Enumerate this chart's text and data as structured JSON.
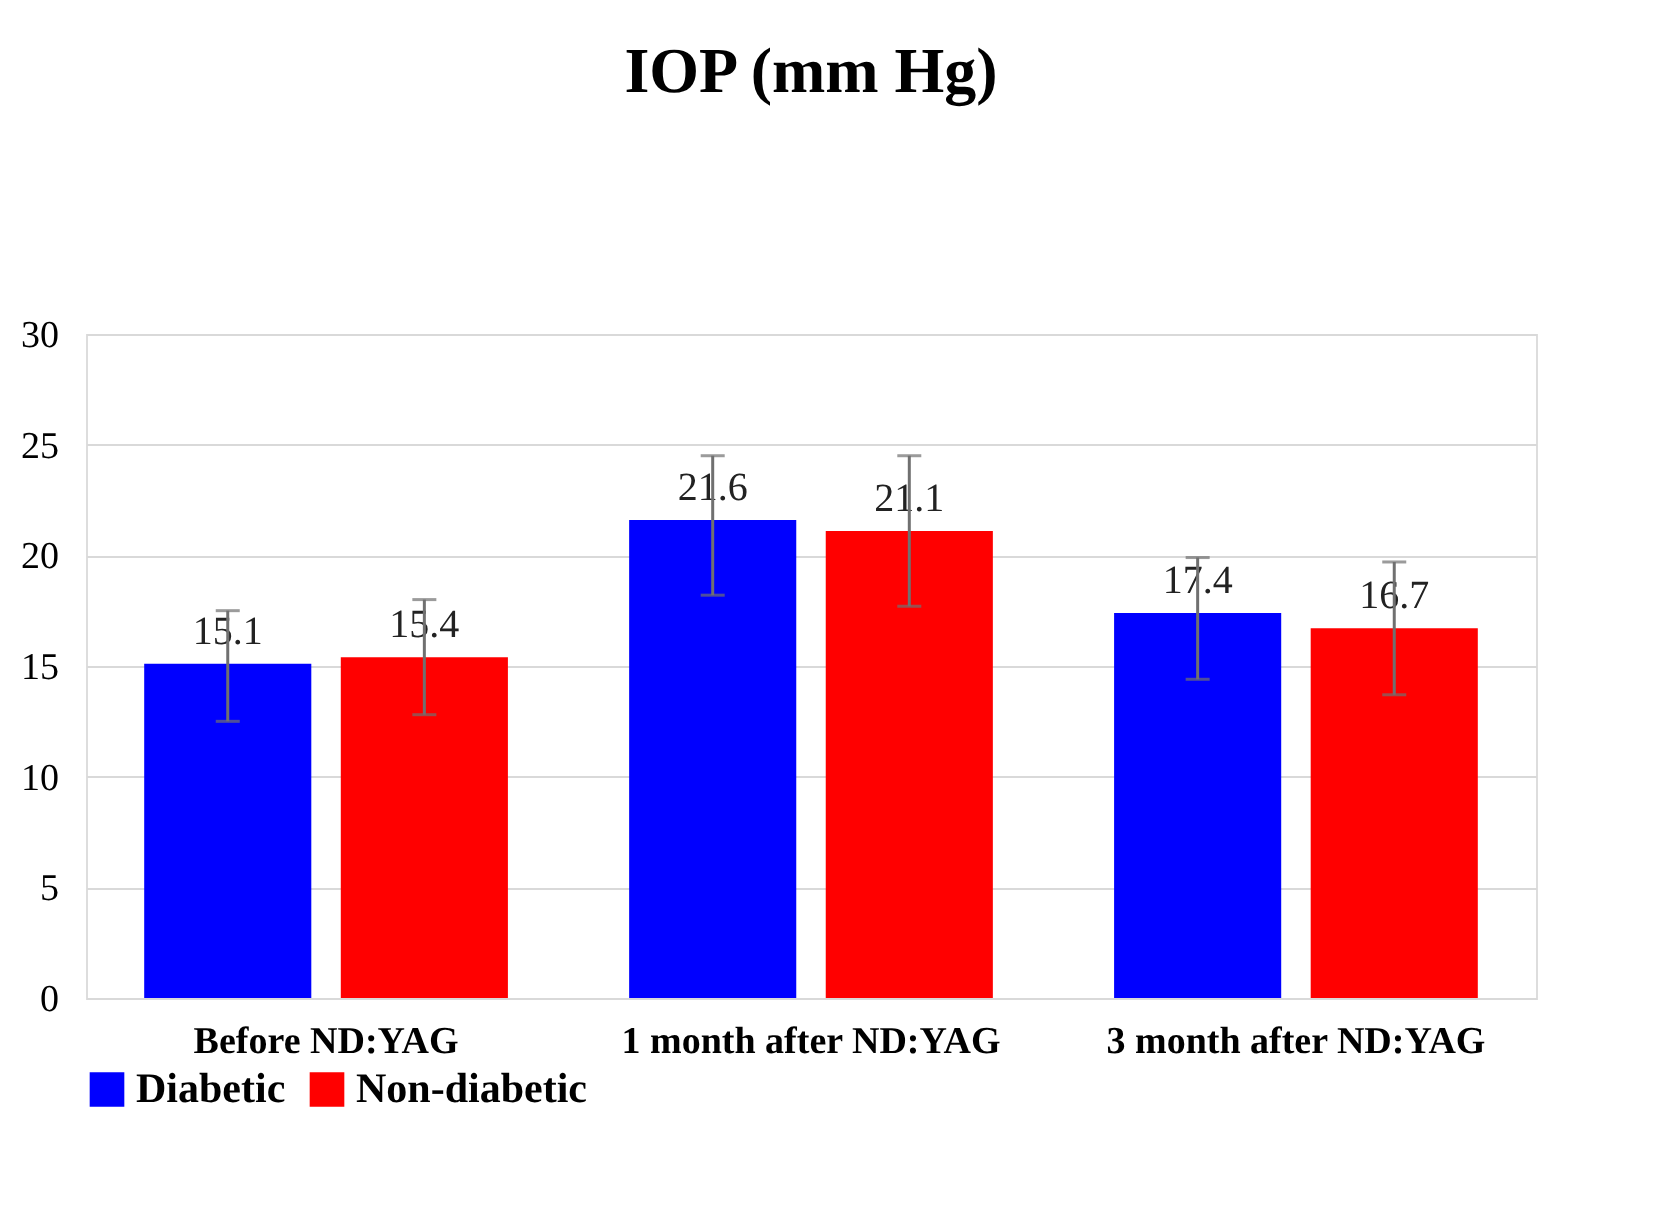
{
  "chart_data": {
    "type": "bar",
    "title": "IOP (mm Hg)",
    "categories": [
      "Before ND:YAG",
      "1 month after ND:YAG",
      "3 month after ND:YAG"
    ],
    "series": [
      {
        "name": "Diabetic",
        "color": "#0000ff",
        "values": [
          15.1,
          21.6,
          17.4
        ],
        "errors": [
          [
            12.5,
            17.5
          ],
          [
            18.2,
            24.5
          ],
          [
            14.4,
            19.9
          ]
        ]
      },
      {
        "name": "Non-diabetic",
        "color": "#ff0000",
        "values": [
          15.4,
          21.1,
          16.7
        ],
        "errors": [
          [
            12.8,
            18.0
          ],
          [
            17.7,
            24.5
          ],
          [
            13.7,
            19.7
          ]
        ]
      }
    ],
    "ylim": [
      0,
      30
    ],
    "yticks": [
      0,
      5,
      10,
      15,
      20,
      25,
      30
    ],
    "grid": "y",
    "legend": "bottom",
    "data_labels": true
  }
}
